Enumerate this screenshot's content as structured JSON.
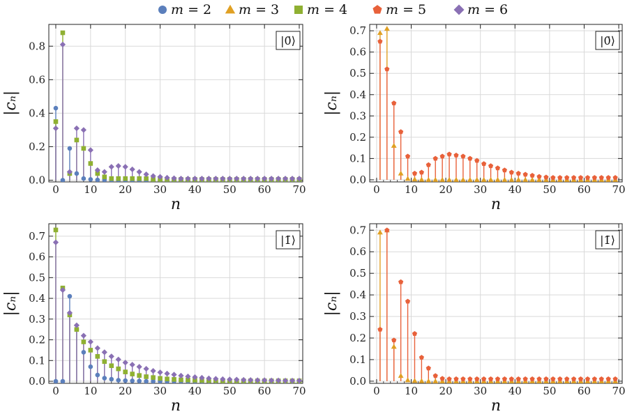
{
  "legend": [
    {
      "label": "m = 2",
      "color": "#5b7fbc",
      "shape": "circle"
    },
    {
      "label": "m = 3",
      "color": "#e0a023",
      "shape": "triangle"
    },
    {
      "label": "m = 4",
      "color": "#8fb032",
      "shape": "square"
    },
    {
      "label": "m = 5",
      "color": "#e8613a",
      "shape": "pentagon"
    },
    {
      "label": "m = 6",
      "color": "#8a70b4",
      "shape": "diamond"
    }
  ],
  "chart_data": [
    {
      "type": "scatter",
      "panel": "top-left",
      "state_label": "|0̄⟩",
      "xlabel": "n",
      "ylabel": "|cₙ|",
      "xlim": [
        -2,
        71
      ],
      "ylim": [
        -0.01,
        0.93
      ],
      "xticks": [
        0,
        10,
        20,
        30,
        40,
        50,
        60,
        70
      ],
      "yticks": [
        0.0,
        0.2,
        0.4,
        0.6,
        0.8
      ],
      "ytick_labels": [
        "0.0",
        "0.2",
        "0.4",
        "0.6",
        "0.8"
      ],
      "series": [
        {
          "name": "m = 2",
          "x": [
            0,
            2,
            4,
            6,
            8,
            10,
            12,
            14,
            16,
            18,
            20,
            22,
            24,
            26,
            28,
            30,
            32,
            34,
            36,
            38,
            40,
            42,
            44,
            46,
            48,
            50,
            52,
            54,
            56,
            58,
            60,
            62,
            64,
            66,
            68,
            70
          ],
          "y": [
            0.43,
            0.0,
            0.19,
            0.04,
            0.01,
            0.005,
            0.002,
            0.001,
            0.0,
            0.0,
            0.0,
            0.0,
            0.0,
            0.0,
            0.0,
            0.0,
            0.0,
            0.0,
            0.0,
            0.0,
            0.0,
            0.0,
            0.0,
            0.0,
            0.0,
            0.0,
            0.0,
            0.0,
            0.0,
            0.0,
            0.0,
            0.0,
            0.0,
            0.0,
            0.0,
            0.0
          ]
        },
        {
          "name": "m = 4",
          "x": [
            0,
            2,
            4,
            6,
            8,
            10,
            12,
            14,
            16,
            18,
            20,
            22,
            24,
            26,
            28,
            30,
            32,
            34,
            36,
            38,
            40,
            42,
            44,
            46,
            48,
            50,
            52,
            54,
            56,
            58,
            60,
            62,
            64,
            66,
            68,
            70
          ],
          "y": [
            0.35,
            0.88,
            0.04,
            0.24,
            0.19,
            0.1,
            0.04,
            0.02,
            0.01,
            0.01,
            0.01,
            0.01,
            0.01,
            0.01,
            0.005,
            0.005,
            0.005,
            0.005,
            0.005,
            0.005,
            0.005,
            0.005,
            0.005,
            0.005,
            0.005,
            0.005,
            0.005,
            0.005,
            0.005,
            0.005,
            0.005,
            0.005,
            0.005,
            0.005,
            0.005,
            0.005
          ]
        },
        {
          "name": "m = 6",
          "x": [
            0,
            2,
            4,
            6,
            8,
            10,
            12,
            14,
            16,
            18,
            20,
            22,
            24,
            26,
            28,
            30,
            32,
            34,
            36,
            38,
            40,
            42,
            44,
            46,
            48,
            50,
            52,
            54,
            56,
            58,
            60,
            62,
            64,
            66,
            68,
            70
          ],
          "y": [
            0.31,
            0.81,
            0.05,
            0.31,
            0.3,
            0.18,
            0.06,
            0.05,
            0.08,
            0.085,
            0.08,
            0.065,
            0.05,
            0.035,
            0.025,
            0.02,
            0.015,
            0.012,
            0.01,
            0.01,
            0.01,
            0.01,
            0.01,
            0.01,
            0.01,
            0.01,
            0.01,
            0.01,
            0.01,
            0.01,
            0.01,
            0.01,
            0.01,
            0.01,
            0.01,
            0.01
          ]
        }
      ]
    },
    {
      "type": "scatter",
      "panel": "top-right",
      "state_label": "|0̄⟩",
      "xlabel": "n",
      "ylabel": "|cₙ|",
      "xlim": [
        -2,
        71
      ],
      "ylim": [
        -0.01,
        0.73
      ],
      "xticks": [
        0,
        10,
        20,
        30,
        40,
        50,
        60,
        70
      ],
      "yticks": [
        0.0,
        0.1,
        0.2,
        0.3,
        0.4,
        0.5,
        0.6,
        0.7
      ],
      "ytick_labels": [
        "0.0",
        "0.1",
        "0.2",
        "0.3",
        "0.4",
        "0.5",
        "0.6",
        "0.7"
      ],
      "series": [
        {
          "name": "m = 3",
          "x": [
            1,
            3,
            5,
            7,
            9,
            11,
            13,
            15,
            17,
            19,
            21,
            23,
            25,
            27,
            29,
            31,
            33,
            35,
            37,
            39,
            41,
            43,
            45,
            47,
            49,
            51,
            53,
            55,
            57,
            59,
            61,
            63,
            65,
            67,
            69
          ],
          "y": [
            0.69,
            0.71,
            0.16,
            0.03,
            0.005,
            0.002,
            0.001,
            0.0,
            0.0,
            0.0,
            0.0,
            0.0,
            0.0,
            0.0,
            0.0,
            0.0,
            0.0,
            0.0,
            0.0,
            0.0,
            0.0,
            0.0,
            0.0,
            0.0,
            0.0,
            0.0,
            0.0,
            0.0,
            0.0,
            0.0,
            0.0,
            0.0,
            0.0,
            0.0,
            0.0
          ]
        },
        {
          "name": "m = 5",
          "x": [
            1,
            3,
            5,
            7,
            9,
            11,
            13,
            15,
            17,
            19,
            21,
            23,
            25,
            27,
            29,
            31,
            33,
            35,
            37,
            39,
            41,
            43,
            45,
            47,
            49,
            51,
            53,
            55,
            57,
            59,
            61,
            63,
            65,
            67,
            69
          ],
          "y": [
            0.65,
            0.52,
            0.36,
            0.225,
            0.11,
            0.03,
            0.035,
            0.07,
            0.1,
            0.11,
            0.12,
            0.115,
            0.11,
            0.1,
            0.09,
            0.075,
            0.065,
            0.055,
            0.045,
            0.035,
            0.03,
            0.025,
            0.02,
            0.015,
            0.012,
            0.01,
            0.01,
            0.01,
            0.01,
            0.01,
            0.01,
            0.01,
            0.01,
            0.01,
            0.01
          ]
        }
      ]
    },
    {
      "type": "scatter",
      "panel": "bottom-left",
      "state_label": "|1̄⟩",
      "xlabel": "n",
      "ylabel": "|cₙ|",
      "xlim": [
        -2,
        71
      ],
      "ylim": [
        -0.01,
        0.76
      ],
      "xticks": [
        0,
        10,
        20,
        30,
        40,
        50,
        60,
        70
      ],
      "yticks": [
        0.0,
        0.1,
        0.2,
        0.3,
        0.4,
        0.5,
        0.6,
        0.7
      ],
      "ytick_labels": [
        "0.0",
        "0.1",
        "0.2",
        "0.3",
        "0.4",
        "0.5",
        "0.6",
        "0.7"
      ],
      "series": [
        {
          "name": "m = 2",
          "x": [
            0,
            2,
            4,
            6,
            8,
            10,
            12,
            14,
            16,
            18,
            20,
            22,
            24,
            26,
            28,
            30,
            32,
            34,
            36,
            38,
            40,
            42,
            44,
            46,
            48,
            50,
            52,
            54,
            56,
            58,
            60,
            62,
            64,
            66,
            68,
            70
          ],
          "y": [
            0.0,
            0.0,
            0.41,
            0.25,
            0.14,
            0.07,
            0.03,
            0.015,
            0.01,
            0.005,
            0.003,
            0.002,
            0.001,
            0.0,
            0.0,
            0.0,
            0.0,
            0.0,
            0.0,
            0.0,
            0.0,
            0.0,
            0.0,
            0.0,
            0.0,
            0.0,
            0.0,
            0.0,
            0.0,
            0.0,
            0.0,
            0.0,
            0.0,
            0.0,
            0.0,
            0.0
          ]
        },
        {
          "name": "m = 4",
          "x": [
            0,
            2,
            4,
            6,
            8,
            10,
            12,
            14,
            16,
            18,
            20,
            22,
            24,
            26,
            28,
            30,
            32,
            34,
            36,
            38,
            40,
            42,
            44,
            46,
            48,
            50,
            52,
            54,
            56,
            58,
            60,
            62,
            64,
            66,
            68,
            70
          ],
          "y": [
            0.73,
            0.45,
            0.32,
            0.25,
            0.19,
            0.15,
            0.12,
            0.095,
            0.075,
            0.06,
            0.045,
            0.035,
            0.028,
            0.022,
            0.018,
            0.014,
            0.011,
            0.009,
            0.007,
            0.006,
            0.005,
            0.004,
            0.003,
            0.003,
            0.002,
            0.002,
            0.002,
            0.002,
            0.002,
            0.002,
            0.002,
            0.002,
            0.002,
            0.002,
            0.002,
            0.002
          ]
        },
        {
          "name": "m = 6",
          "x": [
            0,
            2,
            4,
            6,
            8,
            10,
            12,
            14,
            16,
            18,
            20,
            22,
            24,
            26,
            28,
            30,
            32,
            34,
            36,
            38,
            40,
            42,
            44,
            46,
            48,
            50,
            52,
            54,
            56,
            58,
            60,
            62,
            64,
            66,
            68,
            70
          ],
          "y": [
            0.67,
            0.44,
            0.33,
            0.27,
            0.22,
            0.19,
            0.16,
            0.14,
            0.12,
            0.105,
            0.09,
            0.08,
            0.07,
            0.06,
            0.05,
            0.043,
            0.037,
            0.032,
            0.027,
            0.023,
            0.02,
            0.017,
            0.014,
            0.012,
            0.01,
            0.009,
            0.008,
            0.007,
            0.006,
            0.005,
            0.005,
            0.004,
            0.004,
            0.003,
            0.003,
            0.003
          ]
        }
      ]
    },
    {
      "type": "scatter",
      "panel": "bottom-right",
      "state_label": "|1̄⟩",
      "xlabel": "n",
      "ylabel": "|cₙ|",
      "xlim": [
        -2,
        71
      ],
      "ylim": [
        -0.01,
        0.73
      ],
      "xticks": [
        0,
        10,
        20,
        30,
        40,
        50,
        60,
        70
      ],
      "yticks": [
        0.0,
        0.1,
        0.2,
        0.3,
        0.4,
        0.5,
        0.6,
        0.7
      ],
      "ytick_labels": [
        "0.0",
        "0.1",
        "0.2",
        "0.3",
        "0.4",
        "0.5",
        "0.6",
        "0.7"
      ],
      "series": [
        {
          "name": "m = 3",
          "x": [
            1,
            3,
            5,
            7,
            9,
            11,
            13,
            15,
            17,
            19,
            21,
            23,
            25,
            27,
            29,
            31,
            33,
            35,
            37,
            39,
            41,
            43,
            45,
            47,
            49,
            51,
            53,
            55,
            57,
            59,
            61,
            63,
            65,
            67,
            69
          ],
          "y": [
            0.69,
            0.7,
            0.16,
            0.025,
            0.005,
            0.002,
            0.001,
            0.0,
            0.0,
            0.0,
            0.0,
            0.0,
            0.0,
            0.0,
            0.0,
            0.0,
            0.0,
            0.0,
            0.0,
            0.0,
            0.0,
            0.0,
            0.0,
            0.0,
            0.0,
            0.0,
            0.0,
            0.0,
            0.0,
            0.0,
            0.0,
            0.0,
            0.0,
            0.0,
            0.0
          ]
        },
        {
          "name": "m = 5",
          "x": [
            1,
            3,
            5,
            7,
            9,
            11,
            13,
            15,
            17,
            19,
            21,
            23,
            25,
            27,
            29,
            31,
            33,
            35,
            37,
            39,
            41,
            43,
            45,
            47,
            49,
            51,
            53,
            55,
            57,
            59,
            61,
            63,
            65,
            67,
            69
          ],
          "y": [
            0.24,
            0.7,
            0.19,
            0.46,
            0.37,
            0.22,
            0.11,
            0.06,
            0.025,
            0.012,
            0.01,
            0.01,
            0.01,
            0.01,
            0.01,
            0.01,
            0.01,
            0.01,
            0.01,
            0.01,
            0.01,
            0.01,
            0.01,
            0.01,
            0.01,
            0.01,
            0.01,
            0.01,
            0.01,
            0.01,
            0.01,
            0.01,
            0.01,
            0.01,
            0.01
          ]
        }
      ]
    }
  ]
}
